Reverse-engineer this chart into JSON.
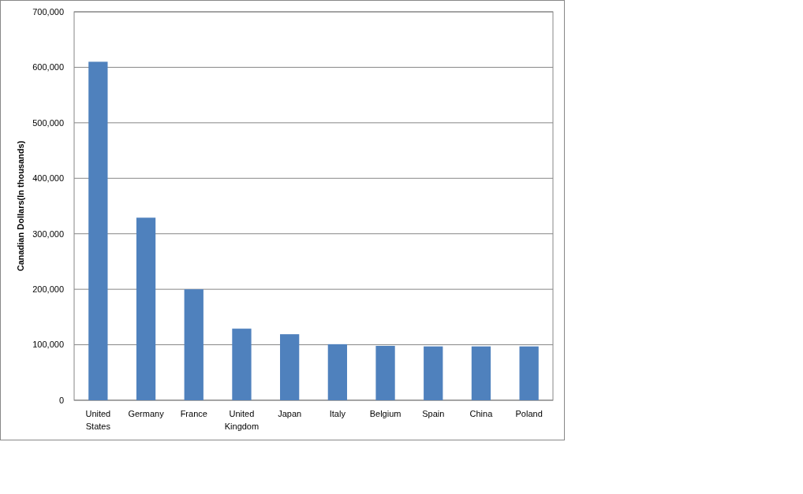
{
  "chart_data": {
    "type": "bar",
    "ylabel": "Canadian Dollars(In thousands)",
    "categories": [
      "United States",
      "Germany",
      "France",
      "United Kingdom",
      "Japan",
      "Italy",
      "Belgium",
      "Spain",
      "China",
      "Poland"
    ],
    "values": [
      610000,
      329000,
      200000,
      129000,
      119000,
      101000,
      98000,
      97000,
      97000,
      97000
    ],
    "color": "#4f81bd",
    "ylim": [
      0,
      700000
    ],
    "yticks": [
      {
        "value": 0,
        "label": "0"
      },
      {
        "value": 100000,
        "label": "100,000"
      },
      {
        "value": 200000,
        "label": "200,000"
      },
      {
        "value": 300000,
        "label": "300,000"
      },
      {
        "value": 400000,
        "label": "400,000"
      },
      {
        "value": 500000,
        "label": "500,000"
      },
      {
        "value": 600000,
        "label": "600,000"
      },
      {
        "value": 700000,
        "label": "700,000"
      }
    ],
    "grid": "y"
  }
}
